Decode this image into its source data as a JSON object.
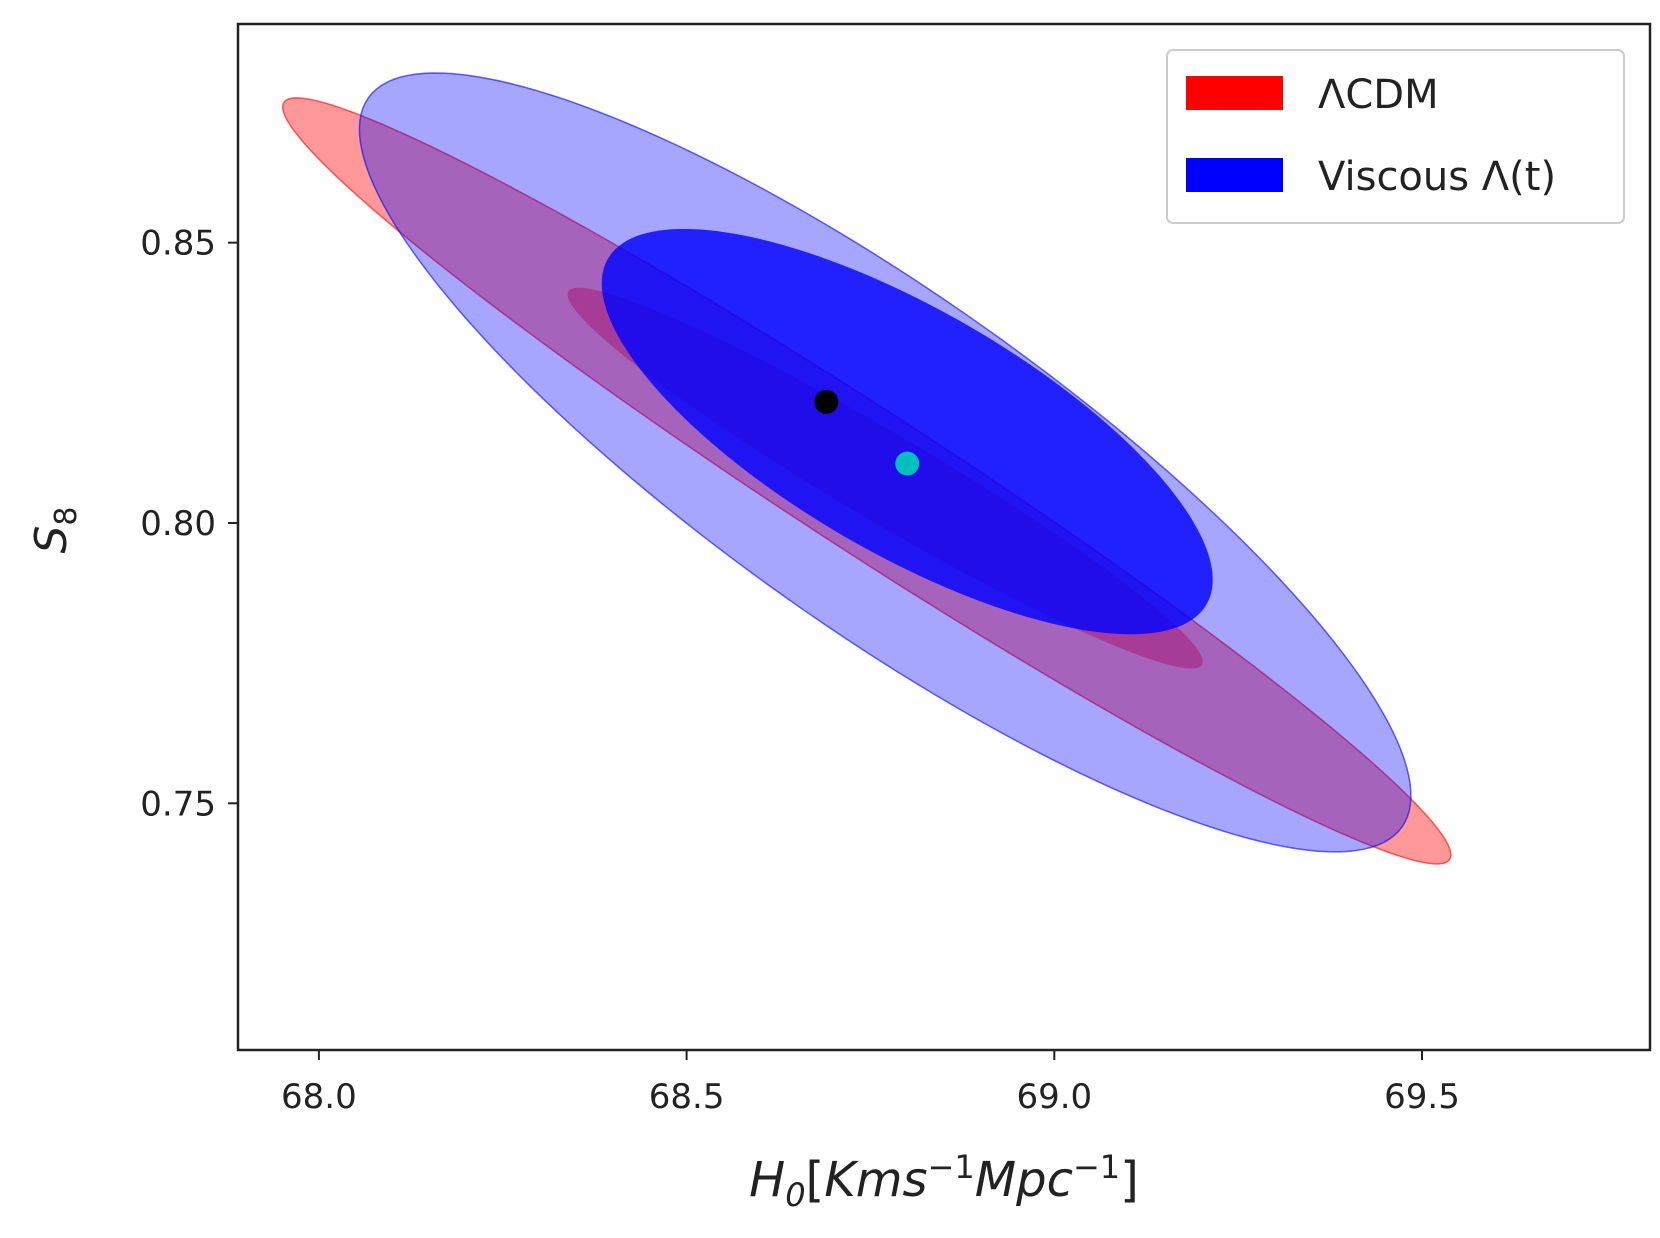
{
  "chart_data": {
    "type": "contour",
    "title": "",
    "xlabel": {
      "main": "H",
      "sub": "0",
      "bracket_open": "[",
      "units": "Kms",
      "exp1": "−1",
      "units2": "Mpc",
      "exp2": "−1",
      "bracket_close": "]"
    },
    "ylabel": {
      "main": "S",
      "sub": "8"
    },
    "xlim": [
      67.89,
      69.81
    ],
    "ylim": [
      0.706,
      0.889
    ],
    "xticks": [
      68.0,
      68.5,
      69.0,
      69.5
    ],
    "xtick_labels": [
      "68.0",
      "68.5",
      "69.0",
      "69.5"
    ],
    "yticks": [
      0.75,
      0.8,
      0.85
    ],
    "ytick_labels": [
      "0.75",
      "0.80",
      "0.85"
    ],
    "legend": {
      "position": "top-right",
      "entries": [
        {
          "label": "ΛCDM",
          "color": "#ff0000"
        },
        {
          "label": "Viscous Λ(t)",
          "color": "#0000ff"
        }
      ]
    },
    "series": [
      {
        "name": "ΛCDM",
        "color": "#ff0000",
        "best_fit": {
          "x": 68.8,
          "y": 0.8106,
          "color": "#00bfbf"
        },
        "contours": [
          {
            "level": "2sigma",
            "opacity": 0.4,
            "cx": 68.745,
            "cy": 0.8075,
            "rx": 0.945,
            "ry": 0.0125,
            "angle_deg": -33.0
          },
          {
            "level": "1sigma",
            "opacity": 0.4,
            "cx": 68.77,
            "cy": 0.808,
            "rx": 0.5,
            "ry": 0.0078,
            "angle_deg": -30.5
          }
        ]
      },
      {
        "name": "Viscous Λ(t)",
        "color": "#0000ff",
        "best_fit": {
          "x": 68.69,
          "y": 0.8216,
          "color": "#000000"
        },
        "contours": [
          {
            "level": "2sigma",
            "opacity": 0.35,
            "cx": 68.77,
            "cy": 0.8108,
            "rx": 0.86,
            "ry": 0.0299,
            "angle_deg": -35.2
          },
          {
            "level": "1sigma",
            "opacity": 0.8,
            "cx": 68.8,
            "cy": 0.8163,
            "rx": 0.47,
            "ry": 0.0218,
            "angle_deg": -30.0
          }
        ]
      }
    ]
  }
}
